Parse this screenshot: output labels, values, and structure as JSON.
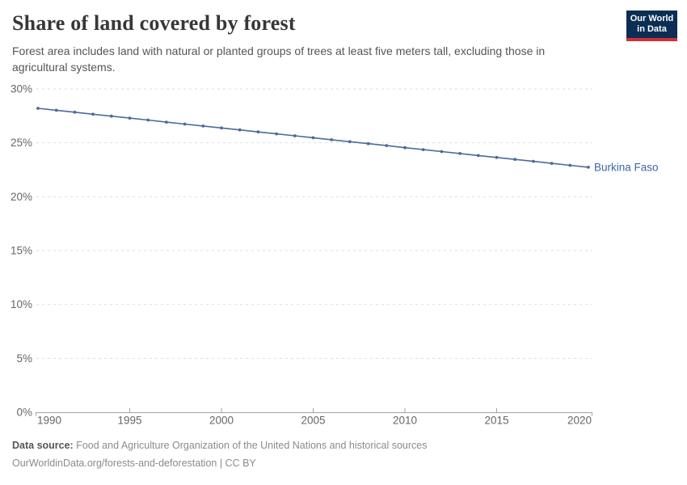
{
  "header": {
    "title": "Share of land covered by forest",
    "subtitle": "Forest area includes land with natural or planted groups of trees at least five meters tall, excluding those in agricultural systems.",
    "logo": {
      "line1": "Our World",
      "line2": "in Data",
      "bg_color": "#0d2e54",
      "bar_color": "#cf3139"
    }
  },
  "chart_data": {
    "type": "line",
    "title": "Share of land covered by forest",
    "series": [
      {
        "name": "Burkina Faso",
        "x": [
          1990,
          1991,
          1992,
          1993,
          1994,
          1995,
          1996,
          1997,
          1998,
          1999,
          2000,
          2001,
          2002,
          2003,
          2004,
          2005,
          2006,
          2007,
          2008,
          2009,
          2010,
          2011,
          2012,
          2013,
          2014,
          2015,
          2016,
          2017,
          2018,
          2019,
          2020
        ],
        "values": [
          28.2,
          28.02,
          27.84,
          27.65,
          27.47,
          27.29,
          27.11,
          26.92,
          26.74,
          26.56,
          26.38,
          26.2,
          26.01,
          25.83,
          25.65,
          25.47,
          25.28,
          25.1,
          24.92,
          24.74,
          24.55,
          24.37,
          24.19,
          24.01,
          23.82,
          23.64,
          23.46,
          23.28,
          23.09,
          22.91,
          22.73
        ]
      }
    ],
    "xlabel": "",
    "ylabel": "",
    "xlim": [
      1990,
      2020
    ],
    "ylim": [
      0,
      30
    ],
    "xticks": [
      1990,
      1995,
      2000,
      2005,
      2010,
      2015,
      2020
    ],
    "yticks": [
      0,
      5,
      10,
      15,
      20,
      25,
      30
    ],
    "ytick_suffix": "%",
    "grid": "horizontal-dashed",
    "legend_position": "end-of-line-label",
    "entity_label": "Burkina Faso",
    "colors": {
      "line": "#4c6a9c",
      "entity_label": "#3d66a8",
      "axis": "#a1a1a1",
      "grid": "#dedede",
      "tick_label": "#666666"
    }
  },
  "footer": {
    "data_source_label": "Data source:",
    "data_source_text": "Food and Agriculture Organization of the United Nations and historical sources",
    "credit_line": "OurWorldinData.org/forests-and-deforestation | CC BY"
  }
}
